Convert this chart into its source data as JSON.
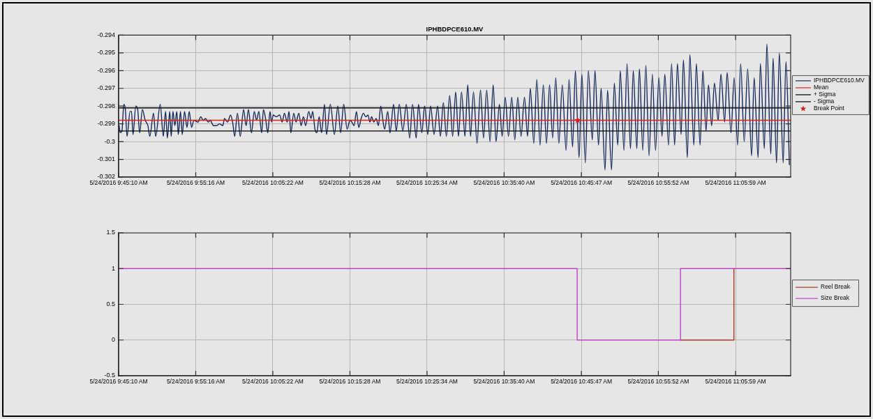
{
  "chart_data": [
    {
      "type": "line",
      "title": "IPHBDPCE610.MV",
      "xlim": [
        "2016-05-24T09:45:10",
        "2016-05-24T11:13:12"
      ],
      "xticks": [
        {
          "value": "2016-05-24T09:45:10",
          "label": "5/24/2016 9:45:10 AM"
        },
        {
          "value": "2016-05-24T09:55:16",
          "label": "5/24/2016 9:55:16 AM"
        },
        {
          "value": "2016-05-24T10:05:22",
          "label": "5/24/2016 10:05:22 AM"
        },
        {
          "value": "2016-05-24T10:15:28",
          "label": "5/24/2016 10:15:28 AM"
        },
        {
          "value": "2016-05-24T10:25:34",
          "label": "5/24/2016 10:25:34 AM"
        },
        {
          "value": "2016-05-24T10:35:40",
          "label": "5/24/2016 10:35:40 AM"
        },
        {
          "value": "2016-05-24T10:45:47",
          "label": "5/24/2016 10:45:47 AM"
        },
        {
          "value": "2016-05-24T10:55:52",
          "label": "5/24/2016 10:55:52 AM"
        },
        {
          "value": "2016-05-24T11:05:59",
          "label": "5/24/2016 11:05:59 AM"
        }
      ],
      "ylim": [
        -0.302,
        -0.294
      ],
      "yticks": [
        -0.302,
        -0.301,
        -0.3,
        -0.299,
        -0.298,
        -0.297,
        -0.296,
        -0.295,
        -0.294
      ],
      "grid": true,
      "legend": "right",
      "series": [
        {
          "name": "IPHBDPCE610.MV",
          "color": "#14285a",
          "x": [
            "2016-05-24T09:45:14",
            "2016-05-24T09:45:23",
            "2016-05-24T09:45:36",
            "2016-05-24T09:45:51",
            "2016-05-24T09:46:03",
            "2016-05-24T09:46:16",
            "2016-05-24T09:46:40",
            "2016-05-24T09:46:51",
            "2016-05-24T09:47:03",
            "2016-05-24T09:47:25",
            "2016-05-24T09:47:40",
            "2016-05-24T09:47:55",
            "2016-05-24T09:48:17",
            "2016-05-24T09:48:39",
            "2016-05-24T09:49:00",
            "2016-05-24T09:49:15",
            "2016-05-24T09:49:44",
            "2016-05-24T09:50:01",
            "2016-05-24T09:50:37",
            "2016-05-24T09:51:01",
            "2016-05-24T09:51:19",
            "2016-05-24T09:51:33",
            "2016-05-24T09:51:52",
            "2016-05-24T09:52:03",
            "2016-05-24T09:52:17",
            "2016-05-24T09:52:32",
            "2016-05-24T09:52:47",
            "2016-05-24T09:52:59",
            "2016-05-24T09:53:16",
            "2016-05-24T09:53:30",
            "2016-05-24T09:53:48",
            "2016-05-24T09:54:07",
            "2016-05-24T09:54:25",
            "2016-05-24T09:54:43",
            "2016-05-24T09:55:02",
            "2016-05-24T09:55:34",
            "2016-05-24T09:55:56",
            "2016-05-24T09:56:14",
            "2016-05-24T09:56:33",
            "2016-05-24T09:56:55",
            "2016-05-24T09:57:09",
            "2016-05-24T09:57:36",
            "2016-05-24T09:58:00",
            "2016-05-24T09:58:22",
            "2016-05-24T09:58:49",
            "2016-05-24T09:59:02",
            "2016-05-24T09:59:26",
            "2016-05-24T09:59:50",
            "2016-05-24T10:00:08",
            "2016-05-24T10:00:22",
            "2016-05-24T10:00:44",
            "2016-05-24T10:01:06",
            "2016-05-24T10:01:32",
            "2016-05-24T10:01:52",
            "2016-05-24T10:02:10",
            "2016-05-24T10:02:34",
            "2016-05-24T10:02:56",
            "2016-05-24T10:03:14",
            "2016-05-24T10:03:32",
            "2016-05-24T10:03:54",
            "2016-05-24T10:04:08",
            "2016-05-24T10:04:27",
            "2016-05-24T10:04:42",
            "2016-05-24T10:05:00",
            "2016-05-24T10:05:12",
            "2016-05-24T10:05:25",
            "2016-05-24T10:05:49",
            "2016-05-24T10:06:16",
            "2016-05-24T10:06:35",
            "2016-05-24T10:06:53",
            "2016-05-24T10:07:15",
            "2016-05-24T10:07:29",
            "2016-05-24T10:07:44",
            "2016-05-24T10:08:06",
            "2016-05-24T10:08:24",
            "2016-05-24T10:08:46",
            "2016-05-24T10:09:04",
            "2016-05-24T10:09:22",
            "2016-05-24T10:09:40",
            "2016-05-24T10:10:04",
            "2016-05-24T10:10:22",
            "2016-05-24T10:10:35",
            "2016-05-24T10:10:53",
            "2016-05-24T10:11:08",
            "2016-05-24T10:11:26",
            "2016-05-24T10:11:45",
            "2016-05-24T10:12:08",
            "2016-05-24T10:12:24",
            "2016-05-24T10:12:54",
            "2016-05-24T10:13:26",
            "2016-05-24T10:13:53",
            "2016-05-24T10:14:15",
            "2016-05-24T10:14:39",
            "2016-05-24T10:15:06",
            "2016-05-24T10:15:28",
            "2016-05-24T10:15:43",
            "2016-05-24T10:16:01",
            "2016-05-24T10:16:19",
            "2016-05-24T10:16:37",
            "2016-05-24T10:16:56",
            "2016-05-24T10:17:14",
            "2016-05-24T10:17:32",
            "2016-05-24T10:17:50",
            "2016-05-24T10:18:05",
            "2016-05-24T10:18:18",
            "2016-05-24T10:18:36",
            "2016-05-24T10:18:54",
            "2016-05-24T10:19:12",
            "2016-05-24T10:19:30",
            "2016-05-24T10:19:49",
            "2016-05-24T10:20:01",
            "2016-05-24T10:20:25",
            "2016-05-24T10:20:43",
            "2016-05-24T10:21:11",
            "2016-05-24T10:21:32",
            "2016-05-24T10:21:56",
            "2016-05-24T10:22:24",
            "2016-05-24T10:22:51",
            "2016-05-24T10:23:18",
            "2016-05-24T10:23:40",
            "2016-05-24T10:24:09",
            "2016-05-24T10:24:27",
            "2016-05-24T10:24:53",
            "2016-05-24T10:25:15",
            "2016-05-24T10:25:40",
            "2016-05-24T10:26:02",
            "2016-05-24T10:26:29",
            "2016-05-24T10:26:57",
            "2016-05-24T10:27:19",
            "2016-05-24T10:27:42",
            "2016-05-24T10:28:06",
            "2016-05-24T10:28:32",
            "2016-05-24T10:28:55",
            "2016-05-24T10:29:19",
            "2016-05-24T10:29:41",
            "2016-05-24T10:30:05",
            "2016-05-24T10:30:32",
            "2016-05-24T10:30:54",
            "2016-05-24T10:31:16",
            "2016-05-24T10:31:39",
            "2016-05-24T10:32:07",
            "2016-05-24T10:32:34",
            "2016-05-24T10:32:58",
            "2016-05-24T10:33:23",
            "2016-05-24T10:33:49",
            "2016-05-24T10:34:14",
            "2016-05-24T10:34:36",
            "2016-05-24T10:35:03",
            "2016-05-24T10:35:24",
            "2016-05-24T10:35:49",
            "2016-05-24T10:36:14",
            "2016-05-24T10:36:40",
            "2016-05-24T10:37:04",
            "2016-05-24T10:37:27",
            "2016-05-24T10:37:53",
            "2016-05-24T10:38:20",
            "2016-05-24T10:38:44",
            "2016-05-24T10:39:06",
            "2016-05-24T10:39:33",
            "2016-05-24T10:39:57",
            "2016-05-24T10:40:22",
            "2016-05-24T10:40:48",
            "2016-05-24T10:41:13",
            "2016-05-24T10:41:37",
            "2016-05-24T10:42:01",
            "2016-05-24T10:42:26",
            "2016-05-24T10:42:50",
            "2016-05-24T10:43:17",
            "2016-05-24T10:43:47",
            "2016-05-24T10:44:10",
            "2016-05-24T10:44:38",
            "2016-05-24T10:45:00",
            "2016-05-24T10:45:29",
            "2016-05-24T10:45:51",
            "2016-05-24T10:46:18",
            "2016-05-24T10:46:42",
            "2016-05-24T10:47:13",
            "2016-05-24T10:47:34",
            "2016-05-24T10:48:02",
            "2016-05-24T10:48:22",
            "2016-05-24T10:48:53",
            "2016-05-24T10:49:13",
            "2016-05-24T10:49:44",
            "2016-05-24T10:50:06",
            "2016-05-24T10:50:33",
            "2016-05-24T10:50:53",
            "2016-05-24T10:51:22",
            "2016-05-24T10:51:46",
            "2016-05-24T10:52:13",
            "2016-05-24T10:52:35",
            "2016-05-24T10:53:03",
            "2016-05-24T10:53:23",
            "2016-05-24T10:53:50",
            "2016-05-24T10:54:14",
            "2016-05-24T10:54:39",
            "2016-05-24T10:55:05",
            "2016-05-24T10:55:30",
            "2016-05-24T10:55:56",
            "2016-05-24T10:56:21",
            "2016-05-24T10:56:43",
            "2016-05-24T10:57:12",
            "2016-05-24T10:57:36",
            "2016-05-24T10:58:00",
            "2016-05-24T10:58:22",
            "2016-05-24T10:58:51",
            "2016-05-24T10:59:09",
            "2016-05-24T10:59:40",
            "2016-05-24T11:00:00",
            "2016-05-24T11:00:31",
            "2016-05-24T11:00:51",
            "2016-05-24T11:01:20",
            "2016-05-24T11:01:42",
            "2016-05-24T11:02:07",
            "2016-05-24T11:02:26",
            "2016-05-24T11:02:51",
            "2016-05-24T11:03:13",
            "2016-05-24T11:03:42",
            "2016-05-24T11:04:04",
            "2016-05-24T11:04:33",
            "2016-05-24T11:04:53",
            "2016-05-24T11:05:23",
            "2016-05-24T11:05:48",
            "2016-05-24T11:06:15",
            "2016-05-24T11:06:39",
            "2016-05-24T11:07:07",
            "2016-05-24T11:07:34",
            "2016-05-24T11:08:05",
            "2016-05-24T11:08:25",
            "2016-05-24T11:08:56",
            "2016-05-24T11:09:14",
            "2016-05-24T11:09:45",
            "2016-05-24T11:10:05",
            "2016-05-24T11:10:36",
            "2016-05-24T11:10:54",
            "2016-05-24T11:11:21",
            "2016-05-24T11:11:43",
            "2016-05-24T11:12:13",
            "2016-05-24T11:12:35",
            "2016-05-24T11:13:02"
          ],
          "values": [
            -0.2991,
            -0.2995,
            -0.2994,
            -0.2979,
            -0.2982,
            -0.2997,
            -0.2983,
            -0.2983,
            -0.2996,
            -0.298,
            -0.2982,
            -0.2995,
            -0.2982,
            -0.2988,
            -0.2991,
            -0.2997,
            -0.2984,
            -0.2997,
            -0.2979,
            -0.2997,
            -0.2983,
            -0.2998,
            -0.2983,
            -0.2997,
            -0.2983,
            -0.2991,
            -0.2983,
            -0.2996,
            -0.2983,
            -0.2996,
            -0.2983,
            -0.2992,
            -0.2983,
            -0.2992,
            -0.2988,
            -0.2989,
            -0.2986,
            -0.2988,
            -0.2987,
            -0.2989,
            -0.2988,
            -0.2991,
            -0.2991,
            -0.299,
            -0.2991,
            -0.2987,
            -0.2989,
            -0.2985,
            -0.299,
            -0.2997,
            -0.2984,
            -0.2997,
            -0.2982,
            -0.2991,
            -0.2982,
            -0.2995,
            -0.2983,
            -0.2988,
            -0.2983,
            -0.2995,
            -0.2982,
            -0.2988,
            -0.2995,
            -0.2983,
            -0.2989,
            -0.2985,
            -0.2986,
            -0.2985,
            -0.2989,
            -0.2984,
            -0.2989,
            -0.2983,
            -0.2995,
            -0.2984,
            -0.2989,
            -0.2984,
            -0.2991,
            -0.2986,
            -0.2991,
            -0.2983,
            -0.2987,
            -0.2983,
            -0.2993,
            -0.2995,
            -0.2986,
            -0.2995,
            -0.2979,
            -0.2996,
            -0.2979,
            -0.2996,
            -0.298,
            -0.2995,
            -0.2979,
            -0.2993,
            -0.2988,
            -0.2989,
            -0.2991,
            -0.2983,
            -0.2992,
            -0.2987,
            -0.2984,
            -0.2986,
            -0.2985,
            -0.2989,
            -0.2986,
            -0.2989,
            -0.2987,
            -0.2991,
            -0.298,
            -0.2989,
            -0.2993,
            -0.2983,
            -0.2995,
            -0.2979,
            -0.2994,
            -0.2979,
            -0.2994,
            -0.2979,
            -0.2998,
            -0.2979,
            -0.2998,
            -0.2979,
            -0.2995,
            -0.298,
            -0.2996,
            -0.298,
            -0.2996,
            -0.298,
            -0.2997,
            -0.2978,
            -0.2997,
            -0.2974,
            -0.2997,
            -0.2972,
            -0.2997,
            -0.2972,
            -0.2997,
            -0.2968,
            -0.2997,
            -0.2972,
            -0.3001,
            -0.2971,
            -0.2998,
            -0.2971,
            -0.3,
            -0.2968,
            -0.3,
            -0.2979,
            -0.2997,
            -0.2975,
            -0.2997,
            -0.2975,
            -0.2999,
            -0.2975,
            -0.2997,
            -0.2975,
            -0.2997,
            -0.297,
            -0.3001,
            -0.2965,
            -0.3002,
            -0.2968,
            -0.3001,
            -0.2968,
            -0.2998,
            -0.2964,
            -0.3001,
            -0.2968,
            -0.3005,
            -0.2965,
            -0.3003,
            -0.296,
            -0.3009,
            -0.2962,
            -0.3012,
            -0.296,
            -0.2999,
            -0.296,
            -0.3002,
            -0.297,
            -0.3016,
            -0.2971,
            -0.3016,
            -0.2967,
            -0.3002,
            -0.296,
            -0.3005,
            -0.2956,
            -0.3004,
            -0.296,
            -0.3004,
            -0.2959,
            -0.3005,
            -0.2957,
            -0.3008,
            -0.2962,
            -0.3005,
            -0.2964,
            -0.2997,
            -0.2962,
            -0.3002,
            -0.2956,
            -0.3002,
            -0.2956,
            -0.2996,
            -0.2954,
            -0.3009,
            -0.2951,
            -0.3002,
            -0.2956,
            -0.3002,
            -0.296,
            -0.2994,
            -0.2968,
            -0.2991,
            -0.2967,
            -0.2988,
            -0.2962,
            -0.2989,
            -0.2961,
            -0.2995,
            -0.2964,
            -0.3002,
            -0.2956,
            -0.3,
            -0.2959,
            -0.3008,
            -0.2964,
            -0.3009,
            -0.2956,
            -0.3004,
            -0.2945,
            -0.3007,
            -0.2953,
            -0.3012,
            -0.295,
            -0.3012,
            -0.2955,
            -0.3013
          ]
        },
        {
          "name": "Mean",
          "color": "#e0201a",
          "x": [
            "2016-05-24T09:45:10",
            "2016-05-24T11:13:12"
          ],
          "values": [
            -0.2988,
            -0.2988
          ]
        },
        {
          "name": "+ Sigma",
          "color": "#000000",
          "x": [
            "2016-05-24T09:45:10",
            "2016-05-24T11:13:12"
          ],
          "values": [
            -0.2981,
            -0.2981
          ]
        },
        {
          "name": "- Sigma",
          "color": "#000000",
          "x": [
            "2016-05-24T09:45:10",
            "2016-05-24T11:13:12"
          ],
          "values": [
            -0.2994,
            -0.2994
          ]
        },
        {
          "name": "Break Point",
          "type": "scatter",
          "marker": "star",
          "color": "#dd1c1c",
          "x": [
            "2016-05-24T10:45:18"
          ],
          "values": [
            -0.2988
          ]
        }
      ]
    },
    {
      "type": "step",
      "xlim": [
        "2016-05-24T09:45:10",
        "2016-05-24T11:13:12"
      ],
      "xticks": [
        {
          "value": "2016-05-24T09:45:10",
          "label": "5/24/2016 9:45:10 AM"
        },
        {
          "value": "2016-05-24T09:55:16",
          "label": "5/24/2016 9:55:16 AM"
        },
        {
          "value": "2016-05-24T10:05:22",
          "label": "5/24/2016 10:05:22 AM"
        },
        {
          "value": "2016-05-24T10:15:28",
          "label": "5/24/2016 10:15:28 AM"
        },
        {
          "value": "2016-05-24T10:25:34",
          "label": "5/24/2016 10:25:34 AM"
        },
        {
          "value": "2016-05-24T10:35:40",
          "label": "5/24/2016 10:35:40 AM"
        },
        {
          "value": "2016-05-24T10:45:47",
          "label": "5/24/2016 10:45:47 AM"
        },
        {
          "value": "2016-05-24T10:55:52",
          "label": "5/24/2016 10:55:52 AM"
        },
        {
          "value": "2016-05-24T11:05:59",
          "label": "5/24/2016 11:05:59 AM"
        }
      ],
      "ylim": [
        -0.5,
        1.5
      ],
      "yticks": [
        -0.5,
        0,
        0.5,
        1,
        1.5
      ],
      "grid": true,
      "legend": "right",
      "series": [
        {
          "name": "Reel Break",
          "color": "#b0352a",
          "x": [
            "2016-05-24T10:58:46",
            "2016-05-24T11:05:46"
          ],
          "values": [
            0,
            1
          ]
        },
        {
          "name": "Size Break",
          "color": "#c040c8",
          "x": [
            "2016-05-24T09:45:10",
            "2016-05-24T10:45:14",
            "2016-05-24T10:58:46",
            "2016-05-24T11:13:12"
          ],
          "values": [
            1,
            0,
            1,
            1
          ]
        }
      ]
    }
  ]
}
